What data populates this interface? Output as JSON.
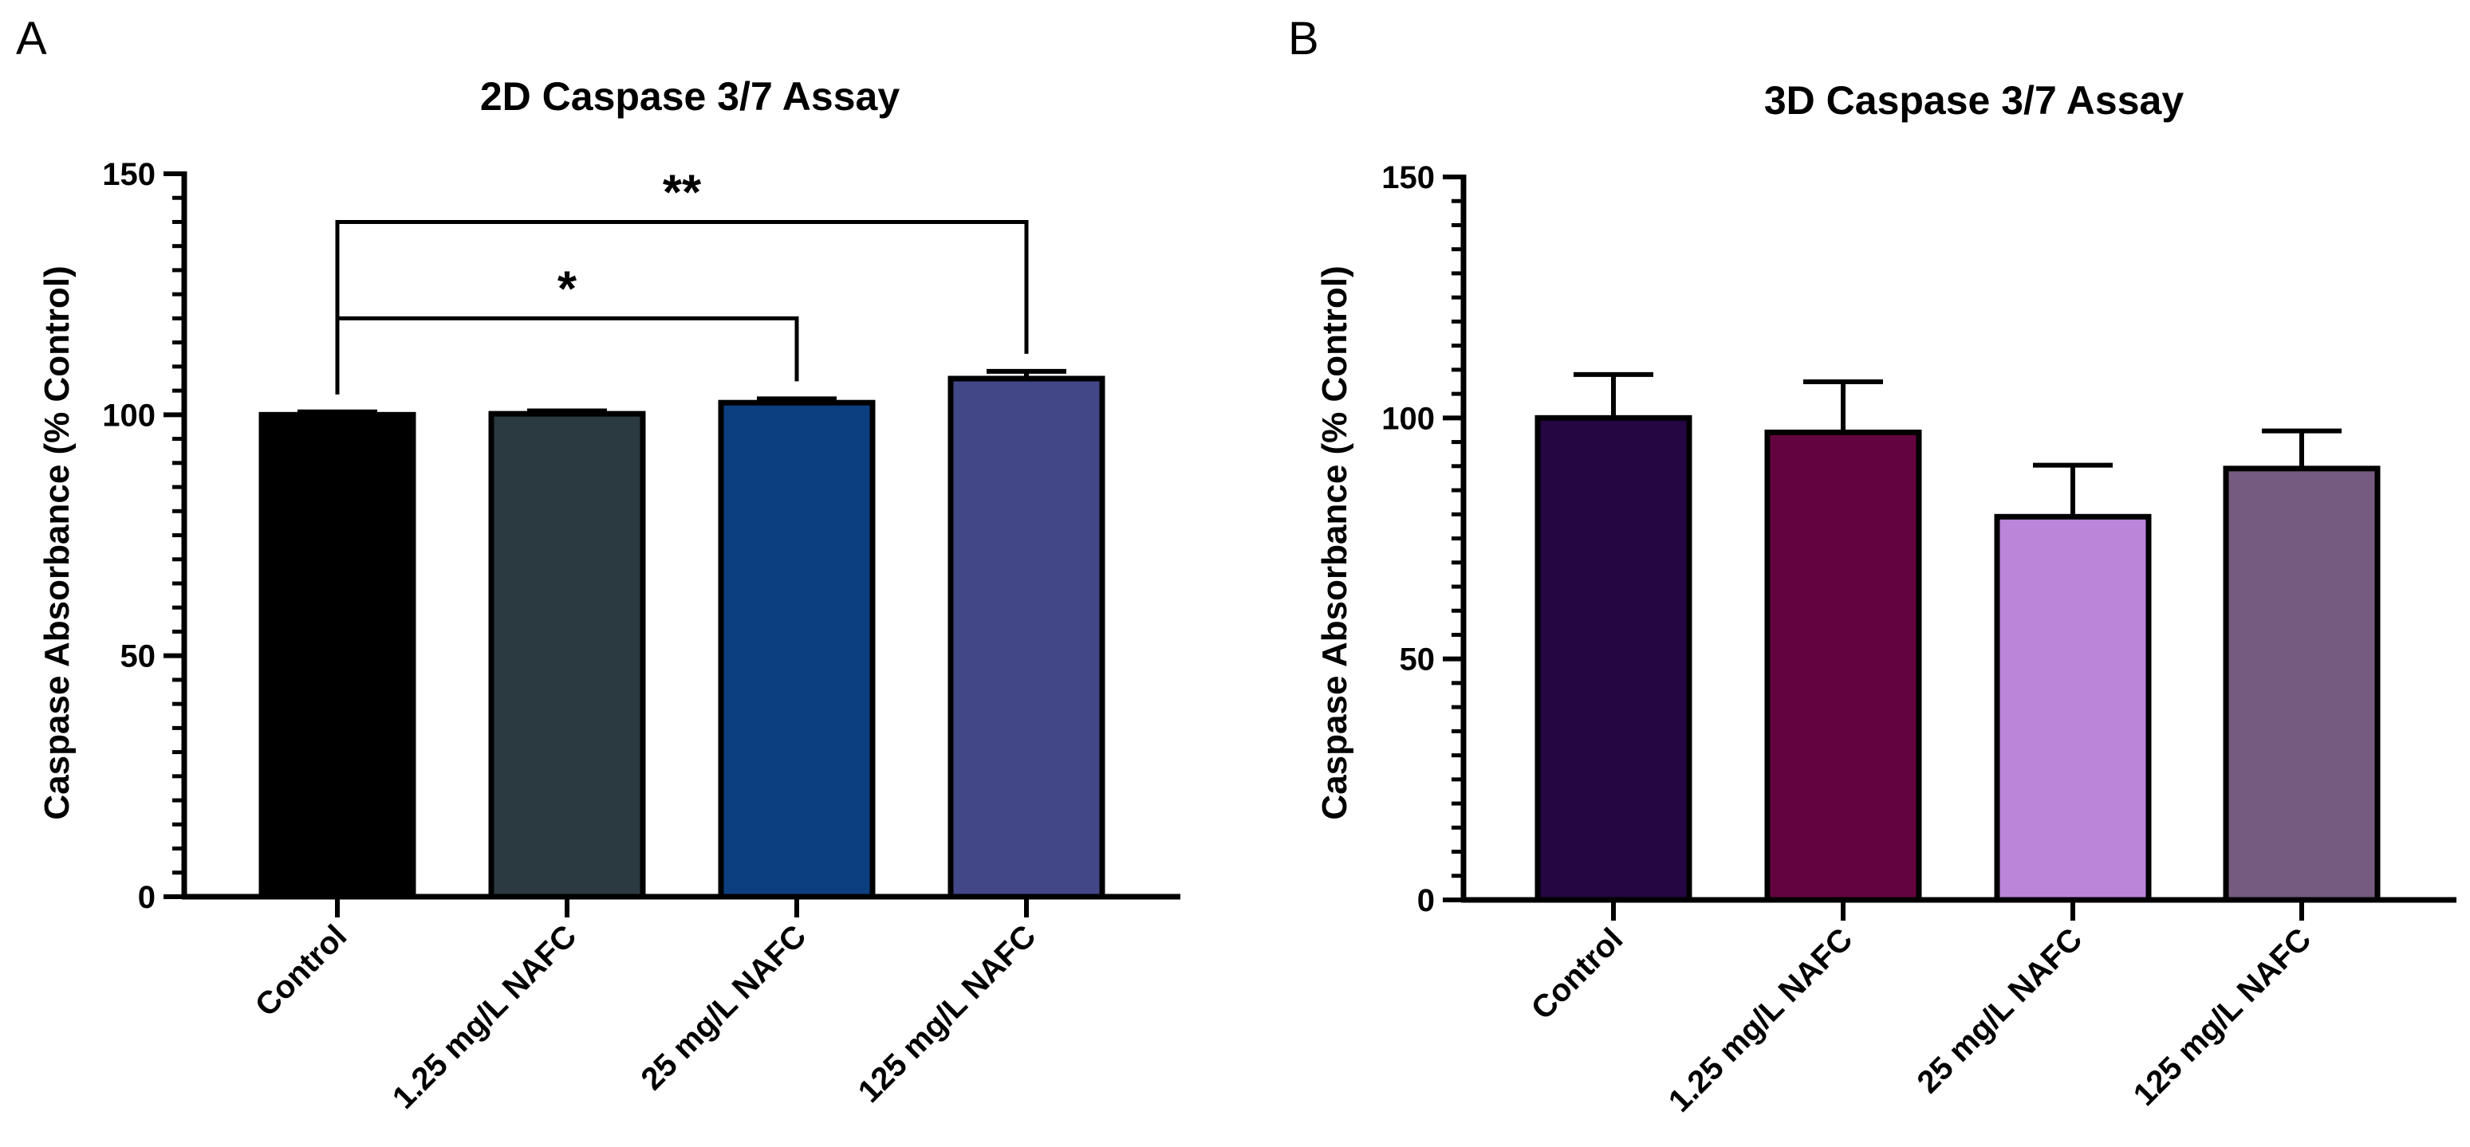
{
  "chart_data": [
    {
      "panel": "A",
      "type": "bar",
      "title": "2D Caspase 3/7 Assay",
      "xlabel": "",
      "ylabel": "Caspase Absorbance (% Control)",
      "ylim": [
        0,
        150
      ],
      "yticks": [
        0,
        50,
        100,
        150
      ],
      "categories": [
        "Control",
        "1.25 mg/L NAFC",
        "25 mg/L NAFC",
        "125 mg/L NAFC"
      ],
      "values": [
        100,
        100.2,
        102.5,
        107.5
      ],
      "errors": [
        0.6,
        0.6,
        0.8,
        1.5
      ],
      "colors": [
        "#000000",
        "#2b3a40",
        "#0c3f80",
        "#414787"
      ],
      "significance": [
        {
          "from": 0,
          "to": 2,
          "label": "*",
          "y": 120
        },
        {
          "from": 0,
          "to": 3,
          "label": "**",
          "y": 140
        }
      ]
    },
    {
      "panel": "B",
      "type": "bar",
      "title": "3D Caspase 3/7 Assay",
      "xlabel": "",
      "ylabel": "Caspase Absorbance (% Control)",
      "ylim": [
        0,
        150
      ],
      "yticks": [
        0,
        50,
        100,
        150
      ],
      "categories": [
        "Control",
        "1.25 mg/L NAFC",
        "25 mg/L NAFC",
        "125 mg/L NAFC"
      ],
      "values": [
        100,
        97,
        79.5,
        89.5
      ],
      "errors": [
        9,
        10.5,
        10.7,
        7.8
      ],
      "colors": [
        "#260543",
        "#64043f",
        "#bb86da",
        "#765b81"
      ],
      "significance": []
    }
  ]
}
